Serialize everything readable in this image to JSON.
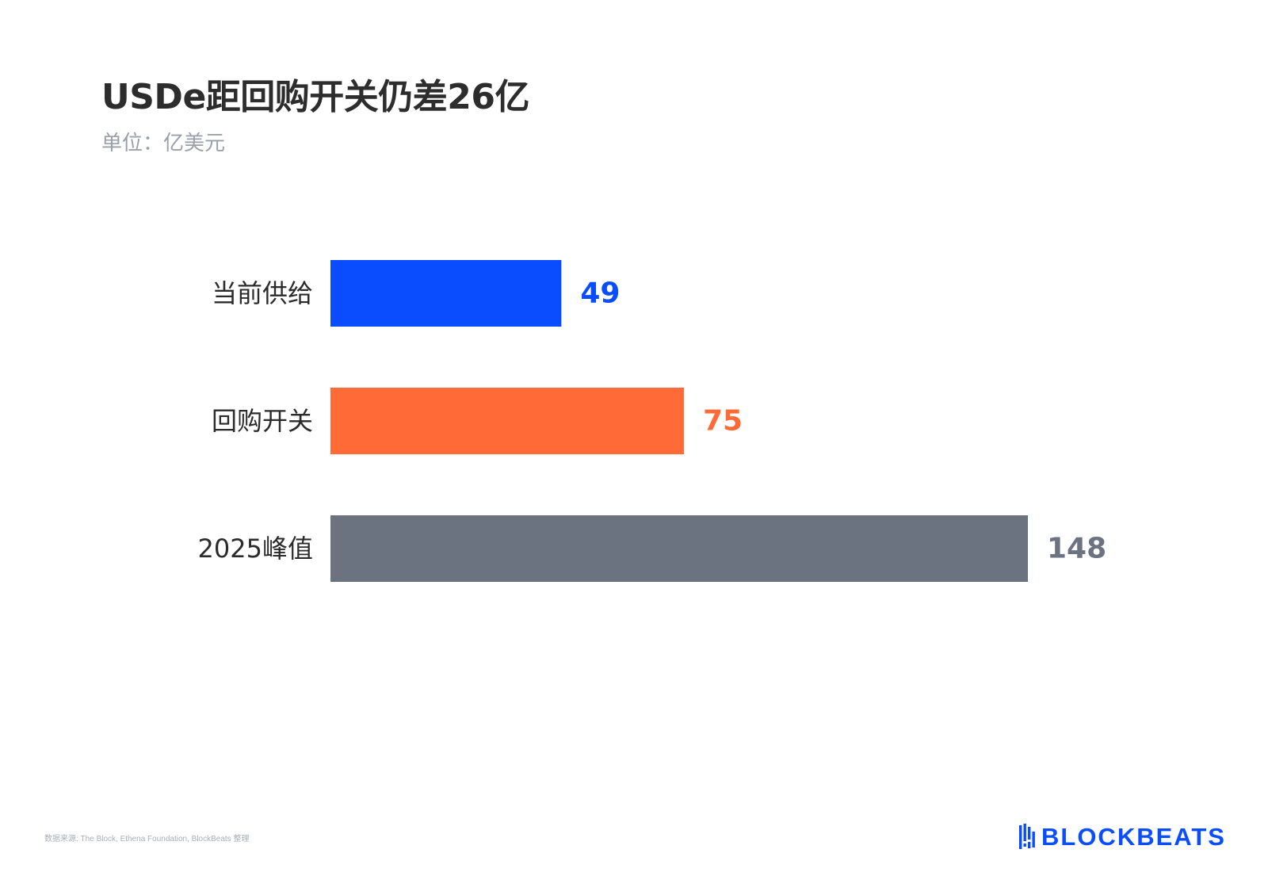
{
  "title": "USDe距回购开关仍差26亿",
  "subtitle": "单位：亿美元",
  "source": "数据来源: The Block, Ethena Foundation, BlockBeats 整理",
  "logo": {
    "text": "BLOCKBEATS",
    "color": "#0a4dff"
  },
  "chart_data": {
    "type": "bar",
    "orientation": "horizontal",
    "title": "USDe距回购开关仍差26亿",
    "subtitle": "单位：亿美元",
    "categories": [
      "当前供给",
      "回购开关",
      "2025峰值"
    ],
    "values": [
      49,
      75,
      148
    ],
    "colors": [
      "#0a4dff",
      "#ff6a36",
      "#6b7280"
    ],
    "xlim": [
      0,
      148
    ],
    "grid": false,
    "legend": "none"
  }
}
